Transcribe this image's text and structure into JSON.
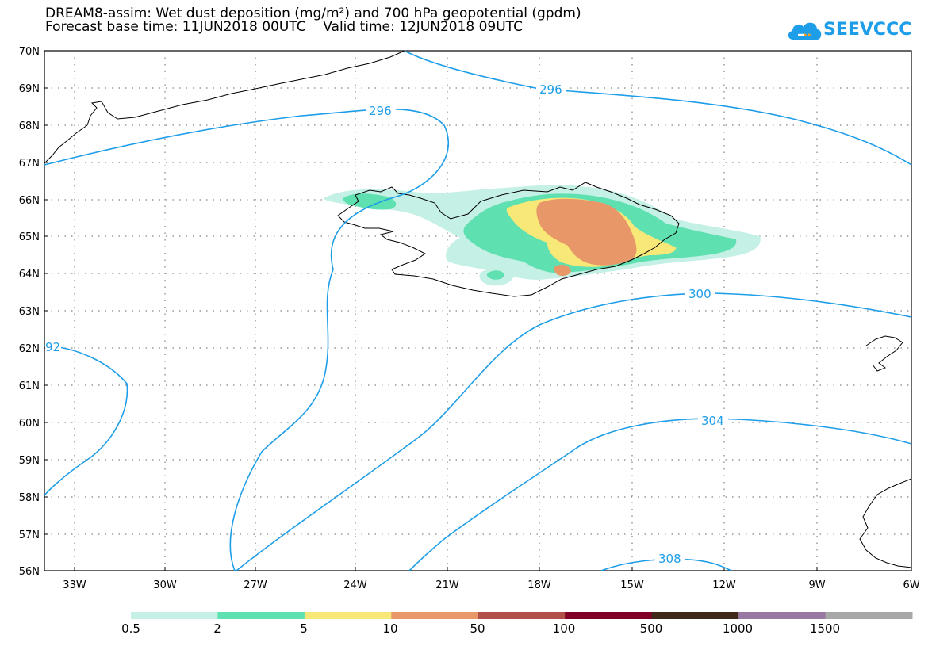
{
  "title_line1": "DREAM8-assim: Wet dust deposition (mg/m²) and 700 hPa geopotential (gpdm)",
  "title_line2": "Forecast base time: 11JUN2018 00UTC    Valid time: 12JUN2018 09UTC",
  "logo": {
    "text": "SEEVCCC",
    "icon": "cloud-icon"
  },
  "map": {
    "lat_labels": [
      "70N",
      "69N",
      "68N",
      "67N",
      "66N",
      "65N",
      "64N",
      "63N",
      "62N",
      "61N",
      "60N",
      "59N",
      "58N",
      "57N",
      "56N"
    ],
    "lon_labels": [
      "33W",
      "30W",
      "27W",
      "24W",
      "21W",
      "18W",
      "15W",
      "12W",
      "9W",
      "6W"
    ],
    "contour_labels": [
      "296",
      "296",
      "300",
      "304",
      "308",
      "92"
    ]
  },
  "colorbar": {
    "labels": [
      "0.5",
      "2",
      "5",
      "10",
      "50",
      "100",
      "500",
      "1000",
      "1500"
    ],
    "colors": [
      "#c4f0e6",
      "#5fe0b0",
      "#f8e878",
      "#e89868",
      "#b05048",
      "#800028",
      "#402818",
      "#9878a0",
      "#a8a8a8"
    ]
  },
  "colors": {
    "contour": "#1e9ee8",
    "coast": "#000000",
    "grid": "#555555"
  }
}
